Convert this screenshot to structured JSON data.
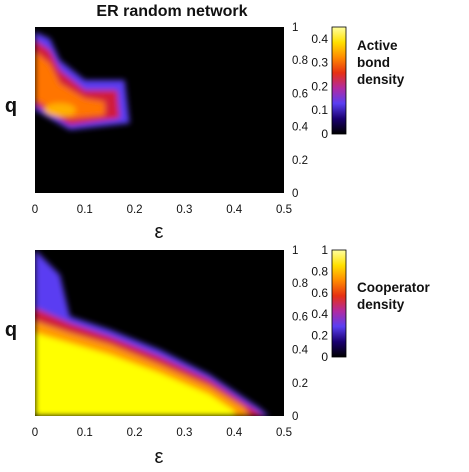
{
  "figure_title": "ER random network",
  "chart_data": [
    {
      "type": "heatmap",
      "title": "ER random network",
      "xlabel": "ε",
      "ylabel": "q",
      "xlim": [
        0,
        0.5
      ],
      "ylim": [
        0,
        1
      ],
      "xticks": [
        "0",
        "0.1",
        "0.2",
        "0.3",
        "0.4",
        "0.5"
      ],
      "yticks": [
        "0",
        "0.2",
        "0.4",
        "0.6",
        "0.8",
        "1"
      ],
      "colorbar": {
        "label_lines": [
          "Active",
          "bond",
          "density"
        ],
        "range": [
          0,
          0.45
        ],
        "ticks": [
          "0",
          "0.1",
          "0.2",
          "0.3",
          "0.4"
        ],
        "colormap": [
          "#000000",
          "#1a0070",
          "#5a3ef2",
          "#b22aa0",
          "#e63012",
          "#ff8a00",
          "#ffe000",
          "#ffffa0"
        ]
      },
      "grid": false,
      "region_description_points": {
        "boundary_q_vs_eps": [
          [
            0,
            0.97
          ],
          [
            0.03,
            0.93
          ],
          [
            0.05,
            0.8
          ],
          [
            0.1,
            0.68
          ],
          [
            0.18,
            0.68
          ],
          [
            0.19,
            0.42
          ],
          [
            0.07,
            0.38
          ],
          [
            0,
            0.5
          ]
        ],
        "peak": {
          "x": 0.05,
          "y": 0.5,
          "value": 0.35
        }
      }
    },
    {
      "type": "heatmap",
      "xlabel": "ε",
      "ylabel": "q",
      "xlim": [
        0,
        0.5
      ],
      "ylim": [
        0,
        1
      ],
      "xticks": [
        "0",
        "0.1",
        "0.2",
        "0.3",
        "0.4",
        "0.5"
      ],
      "yticks": [
        "0",
        "0.2",
        "0.4",
        "0.6",
        "0.8",
        "1"
      ],
      "colorbar": {
        "label_lines": [
          "Cooperator",
          "density"
        ],
        "range": [
          0,
          1
        ],
        "ticks": [
          "0",
          "0.2",
          "0.4",
          "0.6",
          "0.8",
          "1"
        ],
        "colormap": [
          "#000000",
          "#1a0070",
          "#5a3ef2",
          "#b22aa0",
          "#e63012",
          "#ff8a00",
          "#ffe000",
          "#ffffa0"
        ]
      },
      "grid": false,
      "boundary_q_vs_eps": [
        [
          0,
          1.0
        ],
        [
          0.05,
          0.85
        ],
        [
          0.07,
          0.6
        ],
        [
          0.15,
          0.52
        ],
        [
          0.25,
          0.4
        ],
        [
          0.35,
          0.25
        ],
        [
          0.45,
          0.05
        ],
        [
          0.47,
          0.0
        ]
      ]
    }
  ]
}
